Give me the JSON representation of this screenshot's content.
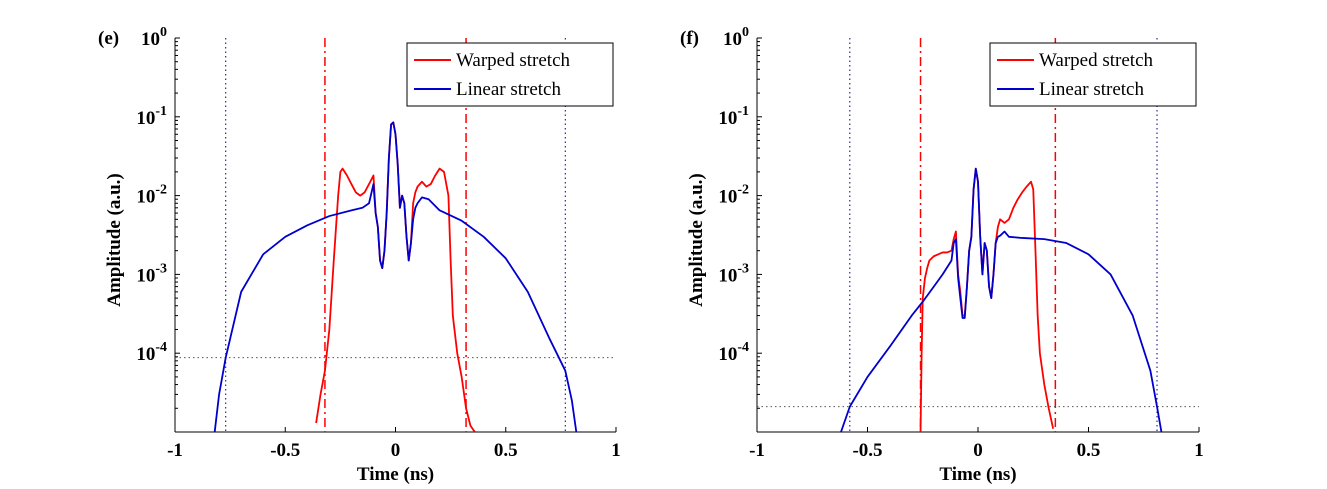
{
  "chart_data": [
    {
      "type": "line",
      "panel_label": "(e)",
      "xlabel": "Time (ns)",
      "ylabel": "Amplitude (a.u.)",
      "xlim": [
        -1,
        1
      ],
      "ylim_log10": [
        -5.0,
        0
      ],
      "yscale": "log",
      "xticks": [
        -1,
        -0.5,
        0,
        0.5,
        1
      ],
      "xtick_labels": [
        "-1",
        "-0.5",
        "0",
        "0.5",
        "1"
      ],
      "ytick_exponents": [
        0,
        -1,
        -2,
        -3,
        -4
      ],
      "ytick_base": "10",
      "legend": {
        "position": "top-right",
        "entries": [
          "Warped stretch",
          "Linear stretch"
        ]
      },
      "colors": {
        "warped": "#ff0000",
        "linear": "#0000cc",
        "ref_linear": "#000080",
        "threshold": "#555555"
      },
      "reference_lines": {
        "warped_edges_x": [
          -0.32,
          0.32
        ],
        "linear_edges_x": [
          -0.77,
          0.77
        ],
        "threshold_y": 8.8e-05
      },
      "series": [
        {
          "name": "Warped stretch",
          "x": [
            -0.36,
            -0.34,
            -0.32,
            -0.3,
            -0.28,
            -0.26,
            -0.25,
            -0.24,
            -0.22,
            -0.2,
            -0.18,
            -0.16,
            -0.14,
            -0.12,
            -0.1,
            -0.09,
            -0.08,
            -0.07,
            -0.06,
            -0.05,
            -0.04,
            -0.03,
            -0.02,
            -0.01,
            0,
            0.01,
            0.02,
            0.03,
            0.04,
            0.05,
            0.06,
            0.07,
            0.08,
            0.09,
            0.1,
            0.12,
            0.14,
            0.16,
            0.18,
            0.2,
            0.22,
            0.24,
            0.25,
            0.26,
            0.28,
            0.3,
            0.32,
            0.34,
            0.36
          ],
          "y": [
            1.3e-05,
            3e-05,
            6e-05,
            0.0002,
            0.0015,
            0.01,
            0.02,
            0.022,
            0.018,
            0.014,
            0.011,
            0.01,
            0.011,
            0.014,
            0.018,
            0.006,
            0.004,
            0.0015,
            0.0012,
            0.002,
            0.006,
            0.03,
            0.08,
            0.085,
            0.06,
            0.025,
            0.007,
            0.01,
            0.008,
            0.003,
            0.0015,
            0.0025,
            0.008,
            0.011,
            0.013,
            0.015,
            0.013,
            0.014,
            0.018,
            0.022,
            0.02,
            0.01,
            0.0015,
            0.0003,
            0.0001,
            5e-05,
            2e-05,
            1.2e-05,
            1e-05
          ]
        },
        {
          "name": "Linear stretch",
          "x": [
            -0.82,
            -0.8,
            -0.77,
            -0.7,
            -0.6,
            -0.5,
            -0.4,
            -0.3,
            -0.2,
            -0.15,
            -0.12,
            -0.1,
            -0.09,
            -0.08,
            -0.07,
            -0.06,
            -0.05,
            -0.04,
            -0.03,
            -0.02,
            -0.01,
            0,
            0.01,
            0.02,
            0.03,
            0.04,
            0.05,
            0.06,
            0.07,
            0.08,
            0.09,
            0.1,
            0.12,
            0.15,
            0.2,
            0.3,
            0.4,
            0.5,
            0.6,
            0.7,
            0.77,
            0.8,
            0.82
          ],
          "y": [
            1e-05,
            3e-05,
            8.8e-05,
            0.0006,
            0.0018,
            0.003,
            0.0042,
            0.0055,
            0.0065,
            0.007,
            0.008,
            0.014,
            0.006,
            0.004,
            0.0015,
            0.0012,
            0.002,
            0.006,
            0.03,
            0.08,
            0.085,
            0.06,
            0.025,
            0.007,
            0.01,
            0.008,
            0.003,
            0.0015,
            0.0025,
            0.005,
            0.007,
            0.008,
            0.0095,
            0.009,
            0.0065,
            0.0048,
            0.003,
            0.0016,
            0.0006,
            0.00015,
            6e-05,
            2.5e-05,
            1e-05
          ]
        }
      ]
    },
    {
      "type": "line",
      "panel_label": "(f)",
      "xlabel": "Time (ns)",
      "ylabel": "Amplitude (a.u.)",
      "xlim": [
        -1,
        1
      ],
      "ylim_log10": [
        -5.0,
        0
      ],
      "yscale": "log",
      "xticks": [
        -1,
        -0.5,
        0,
        0.5,
        1
      ],
      "xtick_labels": [
        "-1",
        "-0.5",
        "0",
        "0.5",
        "1"
      ],
      "ytick_exponents": [
        0,
        -1,
        -2,
        -3,
        -4
      ],
      "ytick_base": "10",
      "legend": {
        "position": "top-right",
        "entries": [
          "Warped stretch",
          "Linear stretch"
        ]
      },
      "colors": {
        "warped": "#ff0000",
        "linear": "#0000cc",
        "ref_linear": "#000080",
        "threshold": "#555555"
      },
      "reference_lines": {
        "warped_edges_x": [
          -0.26,
          0.35
        ],
        "linear_edges_x": [
          -0.58,
          0.81
        ],
        "threshold_y": 2.1e-05
      },
      "series": [
        {
          "name": "Warped stretch",
          "x": [
            -0.26,
            -0.255,
            -0.25,
            -0.24,
            -0.23,
            -0.22,
            -0.2,
            -0.18,
            -0.16,
            -0.14,
            -0.12,
            -0.11,
            -0.1,
            -0.09,
            -0.08,
            -0.07,
            -0.06,
            -0.05,
            -0.04,
            -0.03,
            -0.02,
            -0.01,
            0,
            0.01,
            0.02,
            0.03,
            0.04,
            0.05,
            0.06,
            0.07,
            0.08,
            0.09,
            0.1,
            0.12,
            0.14,
            0.16,
            0.18,
            0.2,
            0.22,
            0.24,
            0.25,
            0.26,
            0.27,
            0.28,
            0.3,
            0.32,
            0.34
          ],
          "y": [
            1e-05,
            0.0001,
            0.0005,
            0.0009,
            0.0012,
            0.0015,
            0.0017,
            0.0018,
            0.0019,
            0.0019,
            0.002,
            0.0028,
            0.0035,
            0.001,
            0.0006,
            0.0003,
            0.0003,
            0.0007,
            0.002,
            0.003,
            0.012,
            0.022,
            0.015,
            0.003,
            0.001,
            0.0025,
            0.002,
            0.0007,
            0.0005,
            0.001,
            0.0025,
            0.004,
            0.005,
            0.0045,
            0.005,
            0.007,
            0.009,
            0.011,
            0.013,
            0.015,
            0.012,
            0.002,
            0.0003,
            0.0001,
            4e-05,
            2e-05,
            1.1e-05
          ]
        },
        {
          "name": "Linear stretch",
          "x": [
            -0.62,
            -0.58,
            -0.5,
            -0.4,
            -0.3,
            -0.25,
            -0.2,
            -0.16,
            -0.12,
            -0.11,
            -0.1,
            -0.09,
            -0.08,
            -0.07,
            -0.06,
            -0.05,
            -0.04,
            -0.03,
            -0.02,
            -0.01,
            0,
            0.01,
            0.02,
            0.03,
            0.04,
            0.05,
            0.06,
            0.07,
            0.08,
            0.09,
            0.1,
            0.12,
            0.14,
            0.2,
            0.3,
            0.4,
            0.5,
            0.6,
            0.7,
            0.78,
            0.81,
            0.83
          ],
          "y": [
            1e-05,
            2.1e-05,
            5e-05,
            0.00012,
            0.0003,
            0.00045,
            0.0007,
            0.001,
            0.0015,
            0.0025,
            0.0028,
            0.0009,
            0.0005,
            0.00028,
            0.00028,
            0.0007,
            0.002,
            0.003,
            0.012,
            0.022,
            0.015,
            0.003,
            0.001,
            0.0025,
            0.002,
            0.0007,
            0.0005,
            0.001,
            0.0025,
            0.003,
            0.0031,
            0.0035,
            0.003,
            0.0029,
            0.0028,
            0.0025,
            0.0018,
            0.001,
            0.0003,
            6e-05,
            2.1e-05,
            1e-05
          ]
        }
      ]
    }
  ]
}
